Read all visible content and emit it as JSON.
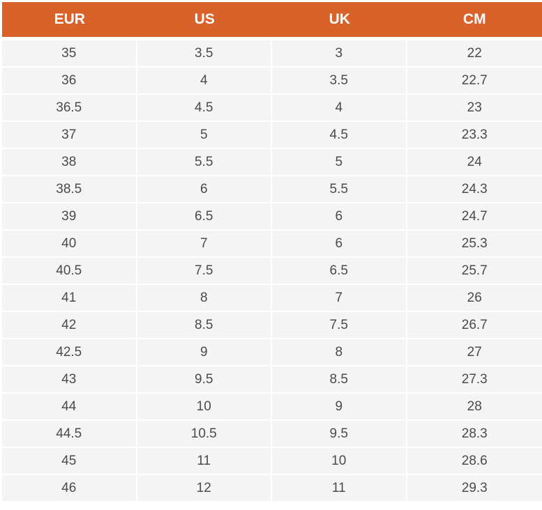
{
  "colors": {
    "header_background": "#d9622b",
    "header_text": "#ffffff",
    "cell_background": "#f4f4f4",
    "cell_text": "#4a4a4a"
  },
  "table": {
    "headers": [
      "EUR",
      "US",
      "UK",
      "CM"
    ],
    "rows": [
      [
        "35",
        "3.5",
        "3",
        "22"
      ],
      [
        "36",
        "4",
        "3.5",
        "22.7"
      ],
      [
        "36.5",
        "4.5",
        "4",
        "23"
      ],
      [
        "37",
        "5",
        "4.5",
        "23.3"
      ],
      [
        "38",
        "5.5",
        "5",
        "24"
      ],
      [
        "38.5",
        "6",
        "5.5",
        "24.3"
      ],
      [
        "39",
        "6.5",
        "6",
        "24.7"
      ],
      [
        "40",
        "7",
        "6",
        "25.3"
      ],
      [
        "40.5",
        "7.5",
        "6.5",
        "25.7"
      ],
      [
        "41",
        "8",
        "7",
        "26"
      ],
      [
        "42",
        "8.5",
        "7.5",
        "26.7"
      ],
      [
        "42.5",
        "9",
        "8",
        "27"
      ],
      [
        "43",
        "9.5",
        "8.5",
        "27.3"
      ],
      [
        "44",
        "10",
        "9",
        "28"
      ],
      [
        "44.5",
        "10.5",
        "9.5",
        "28.3"
      ],
      [
        "45",
        "11",
        "10",
        "28.6"
      ],
      [
        "46",
        "12",
        "11",
        "29.3"
      ]
    ]
  }
}
